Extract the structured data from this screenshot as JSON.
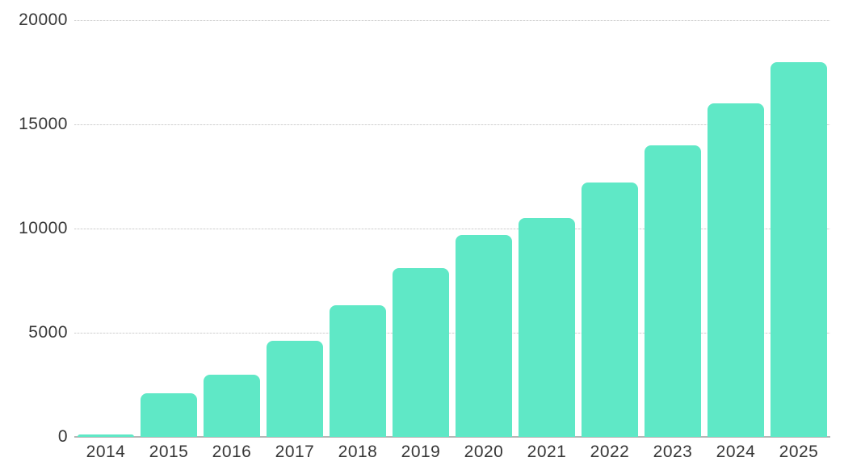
{
  "chart_data": {
    "type": "bar",
    "categories": [
      "2014",
      "2015",
      "2016",
      "2017",
      "2018",
      "2019",
      "2020",
      "2021",
      "2022",
      "2023",
      "2024",
      "2025"
    ],
    "values": [
      100,
      2100,
      3000,
      4600,
      6300,
      8100,
      9700,
      10500,
      12200,
      14000,
      16000,
      18000
    ],
    "ylim": [
      0,
      20000
    ],
    "yticks": [
      0,
      5000,
      10000,
      15000,
      20000
    ],
    "ytick_labels": [
      "0",
      "5000",
      "10000",
      "15000",
      "20000"
    ],
    "grid": "horizontal, fine-dashed, gridlines at 5000/10000/15000/20000, solid baseline at 0",
    "legend": "none",
    "colors": {
      "bar": "#5FE8C6",
      "gridline": "#cfcfcf",
      "baseline": "#b6b6b6",
      "tick_text": "#373737",
      "background": "#ffffff"
    }
  }
}
